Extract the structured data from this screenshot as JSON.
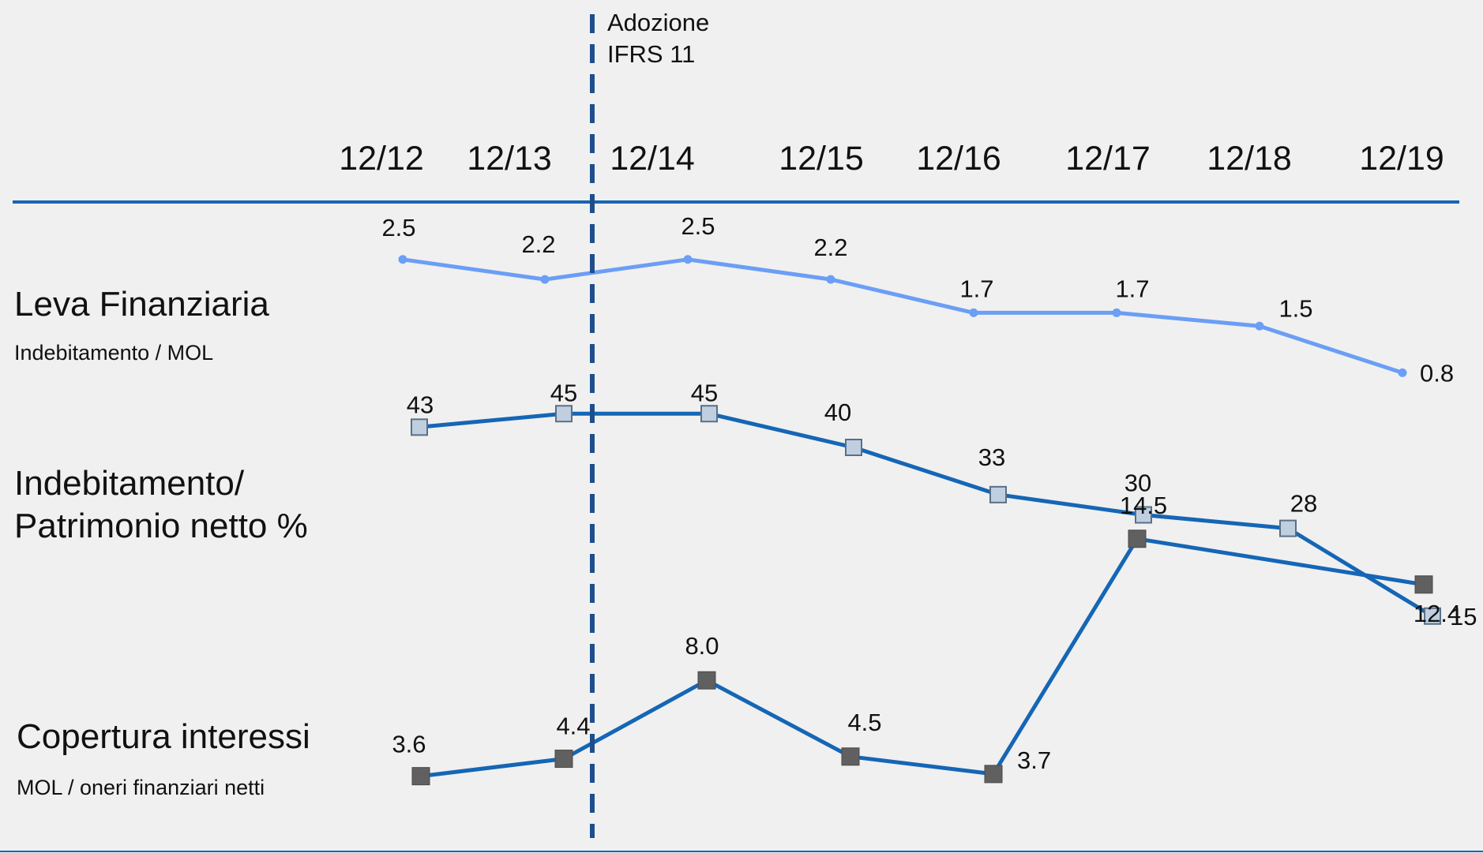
{
  "chart_data": {
    "type": "line",
    "categories": [
      "12/12",
      "12/13",
      "12/14",
      "12/15",
      "12/16",
      "12/17",
      "12/18",
      "12/19"
    ],
    "annotation": {
      "text_lines": [
        "Adozione",
        "IFRS 11"
      ],
      "between": [
        "12/13",
        "12/14"
      ]
    },
    "series": [
      {
        "key": "leva",
        "title_lines": [
          "Leva Finanziaria"
        ],
        "subtitle": "Indebitamento / MOL",
        "values": [
          2.5,
          2.2,
          2.5,
          2.2,
          1.7,
          1.7,
          1.5,
          0.8
        ],
        "labels": [
          "2.5",
          "2.2",
          "2.5",
          "2.2",
          "1.7",
          "1.7",
          "1.5",
          "0.8"
        ],
        "color": "#6b9ef5",
        "marker": "dot"
      },
      {
        "key": "debt_equity",
        "title_lines": [
          "Indebitamento/",
          "Patrimonio netto %"
        ],
        "subtitle": "",
        "values": [
          43,
          45,
          45,
          40,
          33,
          30,
          28,
          15
        ],
        "labels": [
          "43",
          "45",
          "45",
          "40",
          "33",
          "30",
          "28",
          "15"
        ],
        "color": "#1566b5",
        "marker": "light-square"
      },
      {
        "key": "coverage",
        "title_lines": [
          "Copertura interessi"
        ],
        "subtitle": "MOL / oneri finanziari netti",
        "values": [
          3.6,
          4.4,
          8.0,
          4.5,
          3.7,
          14.5,
          null,
          12.4
        ],
        "labels": [
          "3.6",
          "4.4",
          "8.0",
          "4.5",
          "3.7",
          "14.5",
          "",
          "12.4"
        ],
        "color": "#1566b5",
        "marker": "dark-square"
      }
    ],
    "colors": {
      "axis": "#1566b5",
      "divider": "#1f4e8c",
      "marker_dark": "#606060",
      "marker_light": "#bfcfe0"
    }
  }
}
